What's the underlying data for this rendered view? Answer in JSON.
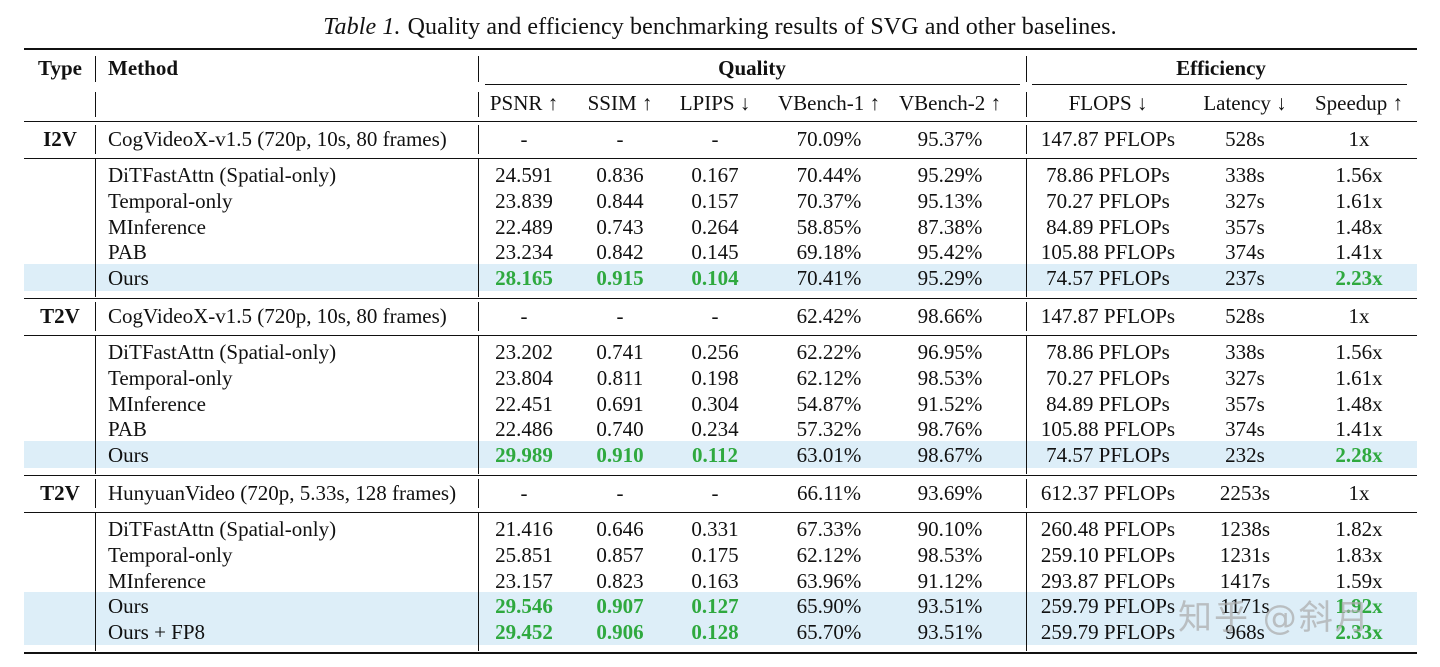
{
  "caption": {
    "lead": "Table 1.",
    "text": "Quality and efficiency benchmarking results of SVG and other baselines."
  },
  "header": {
    "type": "Type",
    "method": "Method",
    "quality": "Quality",
    "efficiency": "Efficiency",
    "columns": [
      "PSNR ↑",
      "SSIM ↑",
      "LPIPS ↓",
      "VBench-1 ↑",
      "VBench-2 ↑",
      "FLOPS ↓",
      "Latency ↓",
      "Speedup ↑"
    ]
  },
  "groups": [
    {
      "type": "I2V",
      "base": {
        "method": "CogVideoX-v1.5 (720p, 10s, 80 frames)",
        "values": [
          "-",
          "-",
          "-",
          "70.09%",
          "95.37%",
          "147.87 PFLOPs",
          "528s",
          "1x"
        ]
      },
      "rows": [
        {
          "method": "DiTFastAttn (Spatial-only)",
          "values": [
            "24.591",
            "0.836",
            "0.167",
            "70.44%",
            "95.29%",
            "78.86 PFLOPs",
            "338s",
            "1.56x"
          ]
        },
        {
          "method": "Temporal-only",
          "values": [
            "23.839",
            "0.844",
            "0.157",
            "70.37%",
            "95.13%",
            "70.27 PFLOPs",
            "327s",
            "1.61x"
          ]
        },
        {
          "method": "MInference",
          "values": [
            "22.489",
            "0.743",
            "0.264",
            "58.85%",
            "87.38%",
            "84.89 PFLOPs",
            "357s",
            "1.48x"
          ]
        },
        {
          "method": "PAB",
          "values": [
            "23.234",
            "0.842",
            "0.145",
            "69.18%",
            "95.42%",
            "105.88 PFLOPs",
            "374s",
            "1.41x"
          ]
        },
        {
          "method": "Ours",
          "values": [
            "28.165",
            "0.915",
            "0.104",
            "70.41%",
            "95.29%",
            "74.57 PFLOPs",
            "237s",
            "2.23x"
          ],
          "ours": true
        }
      ]
    },
    {
      "type": "T2V",
      "base": {
        "method": "CogVideoX-v1.5 (720p, 10s, 80 frames)",
        "values": [
          "-",
          "-",
          "-",
          "62.42%",
          "98.66%",
          "147.87 PFLOPs",
          "528s",
          "1x"
        ]
      },
      "rows": [
        {
          "method": "DiTFastAttn (Spatial-only)",
          "values": [
            "23.202",
            "0.741",
            "0.256",
            "62.22%",
            "96.95%",
            "78.86 PFLOPs",
            "338s",
            "1.56x"
          ]
        },
        {
          "method": "Temporal-only",
          "values": [
            "23.804",
            "0.811",
            "0.198",
            "62.12%",
            "98.53%",
            "70.27 PFLOPs",
            "327s",
            "1.61x"
          ]
        },
        {
          "method": "MInference",
          "values": [
            "22.451",
            "0.691",
            "0.304",
            "54.87%",
            "91.52%",
            "84.89 PFLOPs",
            "357s",
            "1.48x"
          ]
        },
        {
          "method": "PAB",
          "values": [
            "22.486",
            "0.740",
            "0.234",
            "57.32%",
            "98.76%",
            "105.88 PFLOPs",
            "374s",
            "1.41x"
          ]
        },
        {
          "method": "Ours",
          "values": [
            "29.989",
            "0.910",
            "0.112",
            "63.01%",
            "98.67%",
            "74.57 PFLOPs",
            "232s",
            "2.28x"
          ],
          "ours": true
        }
      ]
    },
    {
      "type": "T2V",
      "base": {
        "method": "HunyuanVideo (720p, 5.33s, 128 frames)",
        "values": [
          "-",
          "-",
          "-",
          "66.11%",
          "93.69%",
          "612.37 PFLOPs",
          "2253s",
          "1x"
        ]
      },
      "rows": [
        {
          "method": "DiTFastAttn (Spatial-only)",
          "values": [
            "21.416",
            "0.646",
            "0.331",
            "67.33%",
            "90.10%",
            "260.48 PFLOPs",
            "1238s",
            "1.82x"
          ]
        },
        {
          "method": "Temporal-only",
          "values": [
            "25.851",
            "0.857",
            "0.175",
            "62.12%",
            "98.53%",
            "259.10 PFLOPs",
            "1231s",
            "1.83x"
          ]
        },
        {
          "method": "MInference",
          "values": [
            "23.157",
            "0.823",
            "0.163",
            "63.96%",
            "91.12%",
            "293.87 PFLOPs",
            "1417s",
            "1.59x"
          ]
        },
        {
          "method": "Ours",
          "values": [
            "29.546",
            "0.907",
            "0.127",
            "65.90%",
            "93.51%",
            "259.79 PFLOPs",
            "1171s",
            "1.92x"
          ],
          "ours": true
        },
        {
          "method": "Ours + FP8",
          "values": [
            "29.452",
            "0.906",
            "0.128",
            "65.70%",
            "93.51%",
            "259.79 PFLOPs",
            "968s",
            "2.33x"
          ],
          "ours": true
        }
      ]
    }
  ],
  "watermark": "知乎 @斜月"
}
